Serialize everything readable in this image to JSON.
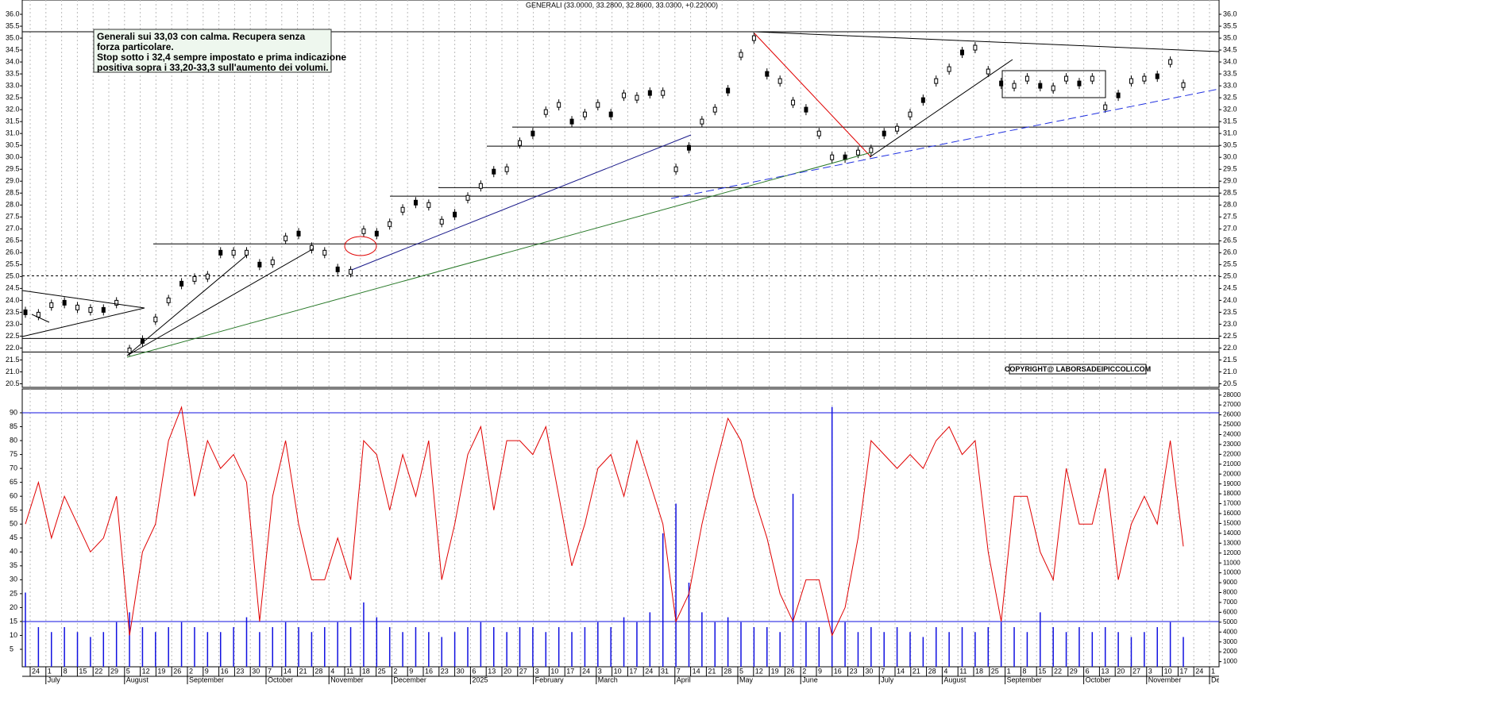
{
  "chart_data": {
    "type": "candlestick",
    "title": "GENERALI (33.0000, 33.2800, 32.8600, 33.0300, +0.22000)",
    "annotation": [
      "Generali sui 33,03 con calma. Recupera senza",
      "forza particolare.",
      "Stop sotto i 32,4 sempre impostato e prima indicazione",
      "positiva sopra i 33,20-33,3 sull'aumento dei volumi."
    ],
    "copyright": "COPYRIGHT@ LABORSADEIPICCOLI.COM",
    "price": {
      "color": "#000000",
      "values": [
        23.5,
        23.4,
        23.8,
        23.9,
        23.7,
        23.6,
        23.6,
        23.9,
        21.9,
        22.3,
        23.2,
        24.0,
        24.7,
        24.9,
        25.0,
        26.0,
        26.0,
        26.0,
        25.5,
        25.6,
        26.6,
        26.8,
        26.2,
        26.0,
        25.3,
        25.2,
        26.9,
        26.8,
        27.2,
        27.8,
        28.1,
        28.0,
        27.3,
        27.6,
        28.3,
        28.8,
        29.4,
        29.5,
        30.6,
        31.0,
        31.9,
        32.2,
        31.5,
        31.8,
        32.2,
        31.8,
        32.6,
        32.5,
        32.7,
        32.7,
        29.5,
        30.4,
        31.5,
        32.0,
        32.8,
        34.3,
        35.0,
        33.5,
        33.2,
        32.3,
        32.0,
        31.0,
        30.0,
        30.0,
        30.2,
        30.3,
        31.0,
        31.2,
        31.8,
        32.4,
        33.2,
        33.7,
        34.4,
        34.6,
        33.6,
        33.1,
        33.0,
        33.3,
        33.0,
        32.9,
        33.3,
        33.1,
        33.3,
        32.1,
        32.6,
        33.2,
        33.3,
        33.4,
        34.0,
        33.03
      ]
    },
    "ylim": [
      20.35,
      36.6
    ],
    "yticks": [
      20.5,
      {
        "value": 21,
        "label": "21.0"
      },
      21.5,
      {
        "value": 22,
        "label": "22.0"
      },
      22.5,
      {
        "value": 23,
        "label": "23.0"
      },
      23.5,
      {
        "value": 24,
        "label": "24.0"
      },
      24.5,
      {
        "value": 25,
        "label": "25.0"
      },
      25.5,
      {
        "value": 26,
        "label": "26.0"
      },
      26.5,
      {
        "value": 27,
        "label": "27.0"
      },
      27.5,
      {
        "value": 28,
        "label": "28.0"
      },
      28.5,
      {
        "value": 29,
        "label": "29.0"
      },
      29.5,
      {
        "value": 30,
        "label": "30.0"
      },
      30.5,
      {
        "value": 31,
        "label": "31.0"
      },
      31.5,
      {
        "value": 32,
        "label": "32.0"
      },
      32.5,
      {
        "value": 33,
        "label": "33.0"
      },
      33.5,
      {
        "value": 34,
        "label": "34.0"
      },
      34.5,
      {
        "value": 35,
        "label": "35.0"
      },
      35.5,
      {
        "value": 36,
        "label": "36.0"
      }
    ],
    "levels": [
      {
        "value": 35.27,
        "dashed": false
      },
      {
        "value": 31.27,
        "dashed": false
      },
      {
        "value": 30.47,
        "dashed": false
      },
      {
        "value": 28.73,
        "dashed": false
      },
      {
        "value": 28.37,
        "dashed": false
      },
      {
        "value": 26.37,
        "dashed": false
      },
      {
        "value": 25.03,
        "dashed": true
      },
      {
        "value": 22.4,
        "dashed": false
      },
      {
        "value": 21.83,
        "dashed": false
      }
    ],
    "oscillator": {
      "color": "#e00000",
      "values": [
        50,
        65,
        45,
        60,
        50,
        40,
        45,
        60,
        10,
        40,
        50,
        80,
        92,
        60,
        80,
        70,
        75,
        65,
        15,
        60,
        80,
        50,
        30,
        30,
        45,
        30,
        80,
        75,
        55,
        75,
        60,
        80,
        30,
        50,
        75,
        85,
        55,
        80,
        80,
        75,
        85,
        60,
        35,
        50,
        70,
        75,
        60,
        80,
        65,
        50,
        15,
        25,
        50,
        70,
        88,
        80,
        60,
        45,
        25,
        15,
        30,
        30,
        10,
        20,
        45,
        80,
        75,
        70,
        75,
        70,
        80,
        85,
        75,
        80,
        40,
        15,
        60,
        60,
        40,
        30,
        70,
        50,
        50,
        70,
        30,
        50,
        60,
        50,
        80,
        42
      ]
    },
    "osc_lim": [
      0,
      95
    ],
    "osc_ticks": [
      5,
      10,
      15,
      20,
      25,
      30,
      35,
      40,
      45,
      50,
      55,
      60,
      65,
      70,
      75,
      80,
      85,
      90
    ],
    "osc_levels": [
      90,
      15
    ],
    "volume": {
      "color": "#1010e0",
      "axis": "y2",
      "values": [
        8000,
        4500,
        4000,
        4500,
        4000,
        3500,
        4000,
        5000,
        6000,
        4500,
        4000,
        4500,
        5000,
        4500,
        4000,
        4000,
        4500,
        5500,
        4000,
        4500,
        5000,
        4500,
        4000,
        4500,
        5000,
        4500,
        7000,
        5500,
        4500,
        4000,
        4500,
        4000,
        3500,
        4000,
        4500,
        5000,
        4500,
        4000,
        4500,
        4500,
        4000,
        4500,
        4000,
        4500,
        5000,
        4500,
        5500,
        5000,
        6000,
        14000,
        17000,
        9000,
        6000,
        5000,
        5500,
        5000,
        4500,
        4500,
        4000,
        18000,
        5000,
        4500,
        26800,
        5000,
        4000,
        4500,
        4000,
        4500,
        4000,
        3500,
        4500,
        4000,
        4500,
        4000,
        4500,
        5000,
        4500,
        4000,
        6000,
        4500,
        4000,
        4500,
        4000,
        4500,
        4000,
        3500,
        4000,
        4500,
        5000,
        3500
      ]
    },
    "y2lim": [
      0,
      28000
    ],
    "y2ticks": [
      1000,
      2000,
      3000,
      4000,
      5000,
      6000,
      7000,
      8000,
      9000,
      10000,
      11000,
      12000,
      13000,
      14000,
      15000,
      16000,
      17000,
      18000,
      19000,
      20000,
      21000,
      22000,
      23000,
      24000,
      25000,
      26000,
      27000,
      28000
    ],
    "weeks": [
      "24",
      "1",
      "8",
      "15",
      "22",
      "29",
      "5",
      "12",
      "19",
      "26",
      "2",
      "9",
      "16",
      "23",
      "30",
      "7",
      "14",
      "21",
      "28",
      "4",
      "11",
      "18",
      "25",
      "2",
      "9",
      "16",
      "23",
      "30",
      "6",
      "13",
      "20",
      "27",
      "3",
      "10",
      "17",
      "24",
      "3",
      "10",
      "17",
      "24",
      "31",
      "7",
      "14",
      "21",
      "28",
      "5",
      "12",
      "19",
      "26",
      "2",
      "9",
      "16",
      "23",
      "30",
      "7",
      "14",
      "21",
      "28",
      "4",
      "11",
      "18",
      "25",
      "1",
      "8",
      "15",
      "22",
      "29",
      "6",
      "13",
      "20",
      "27",
      "3",
      "10",
      "17",
      "24",
      "1"
    ],
    "months": [
      "July",
      "August",
      "September",
      "October",
      "November",
      "December",
      "2025",
      "February",
      "March",
      "April",
      "May",
      "June",
      "July",
      "August",
      "September",
      "October",
      "November",
      "December"
    ]
  }
}
